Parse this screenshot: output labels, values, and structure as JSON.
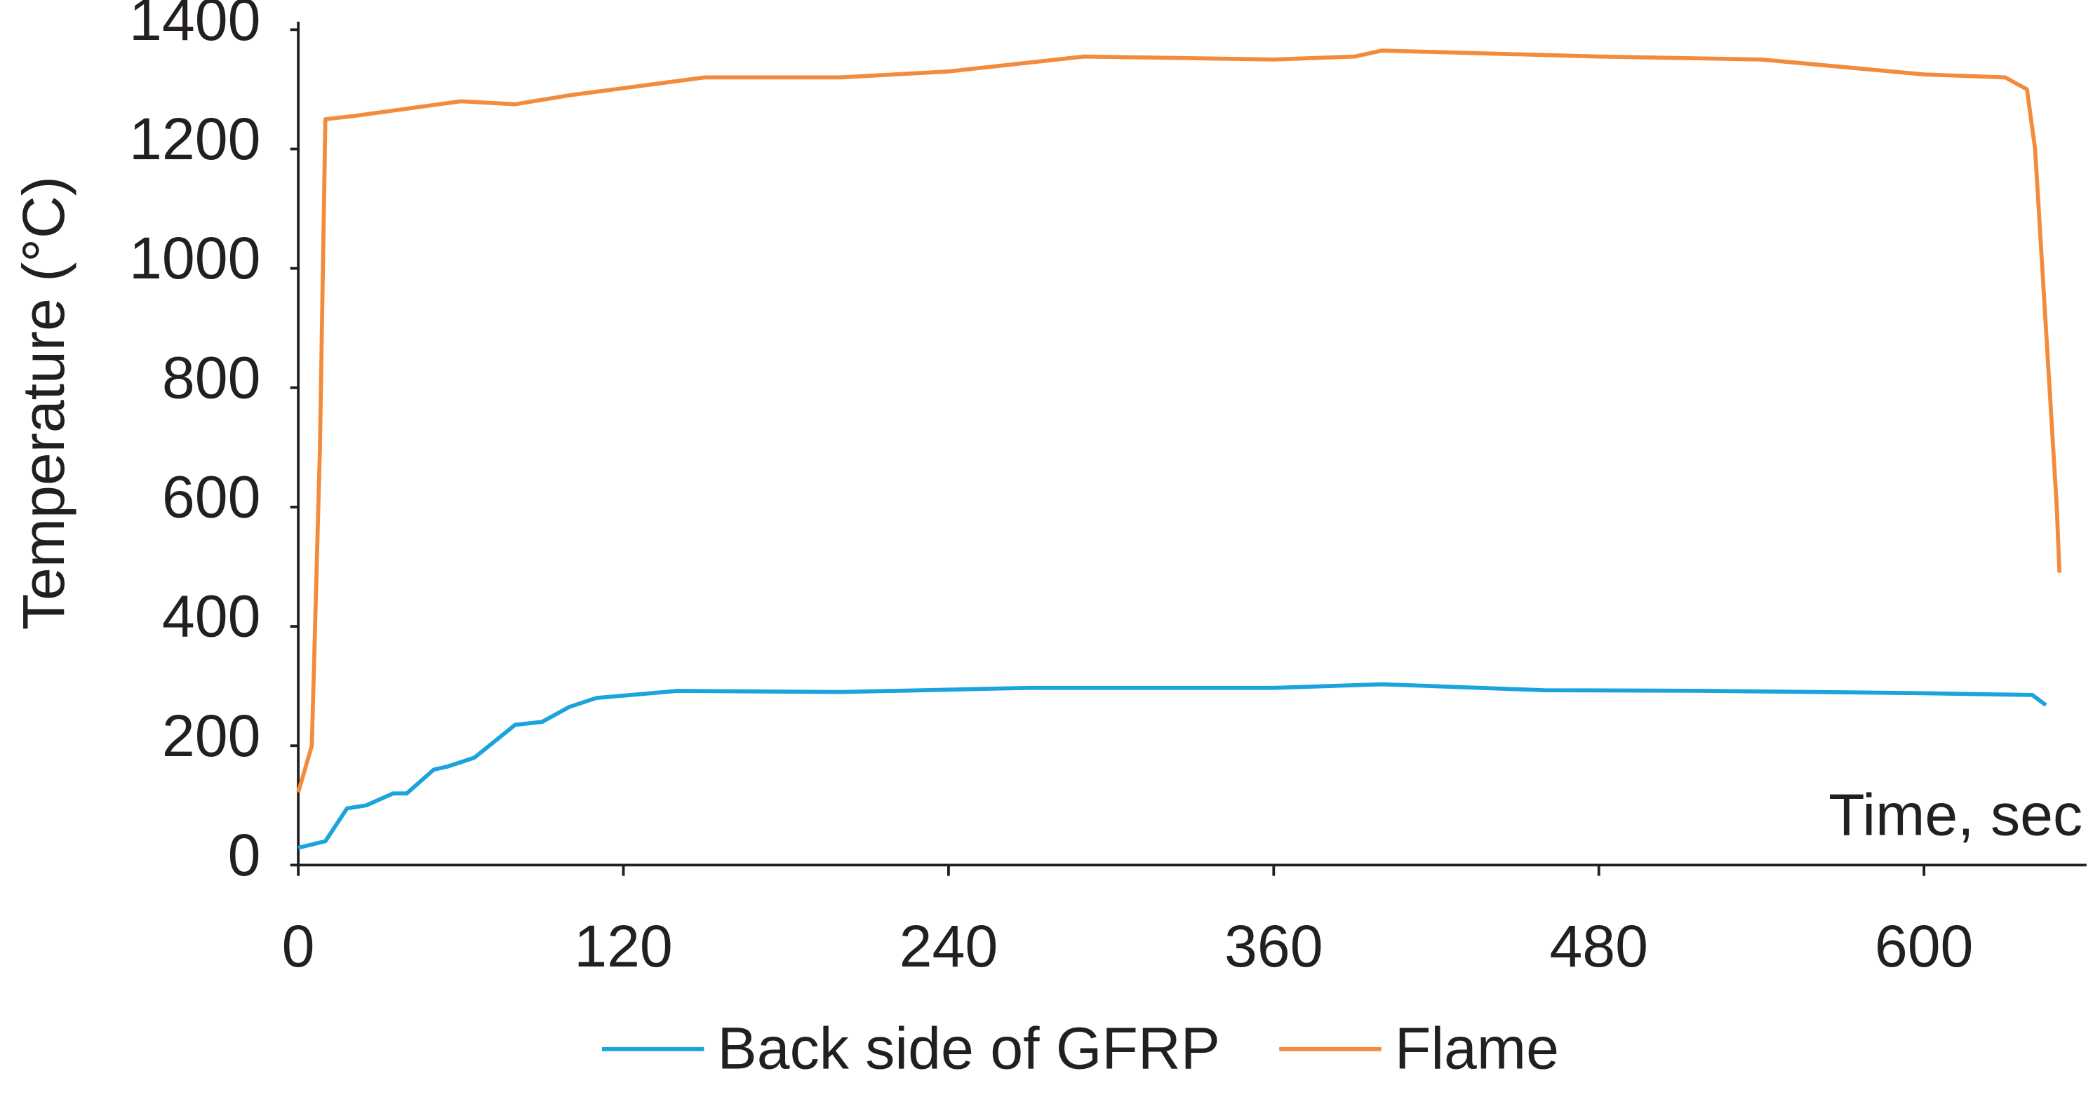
{
  "chart_data": {
    "type": "line",
    "y_label": "Temperature (°C)",
    "x_label": "Time, sec",
    "xlim": [
      0,
      660
    ],
    "ylim": [
      0,
      1400
    ],
    "xticks": [
      0,
      120,
      240,
      360,
      480,
      600
    ],
    "yticks": [
      0,
      200,
      400,
      600,
      800,
      1000,
      1200,
      1400
    ],
    "series": [
      {
        "name": "Back side of GFRP",
        "color": "#1aa3dd",
        "x": [
          0,
          10,
          18,
          25,
          35,
          40,
          50,
          55,
          65,
          80,
          90,
          100,
          110,
          140,
          200,
          270,
          360,
          400,
          460,
          520,
          600,
          640,
          645
        ],
        "values": [
          29,
          40,
          95,
          100,
          120,
          120,
          160,
          165,
          180,
          235,
          240,
          265,
          280,
          292,
          290,
          297,
          297,
          303,
          293,
          292,
          288,
          285,
          268
        ]
      },
      {
        "name": "Flame",
        "color": "#f28c3c",
        "x": [
          0,
          5,
          8,
          10,
          20,
          60,
          80,
          100,
          150,
          200,
          240,
          290,
          360,
          390,
          400,
          480,
          540,
          600,
          630,
          638,
          641,
          645,
          649,
          650
        ],
        "values": [
          122,
          200,
          700,
          1250,
          1255,
          1280,
          1275,
          1290,
          1320,
          1320,
          1330,
          1355,
          1350,
          1355,
          1365,
          1355,
          1350,
          1325,
          1320,
          1300,
          1200,
          900,
          600,
          490
        ]
      }
    ]
  }
}
